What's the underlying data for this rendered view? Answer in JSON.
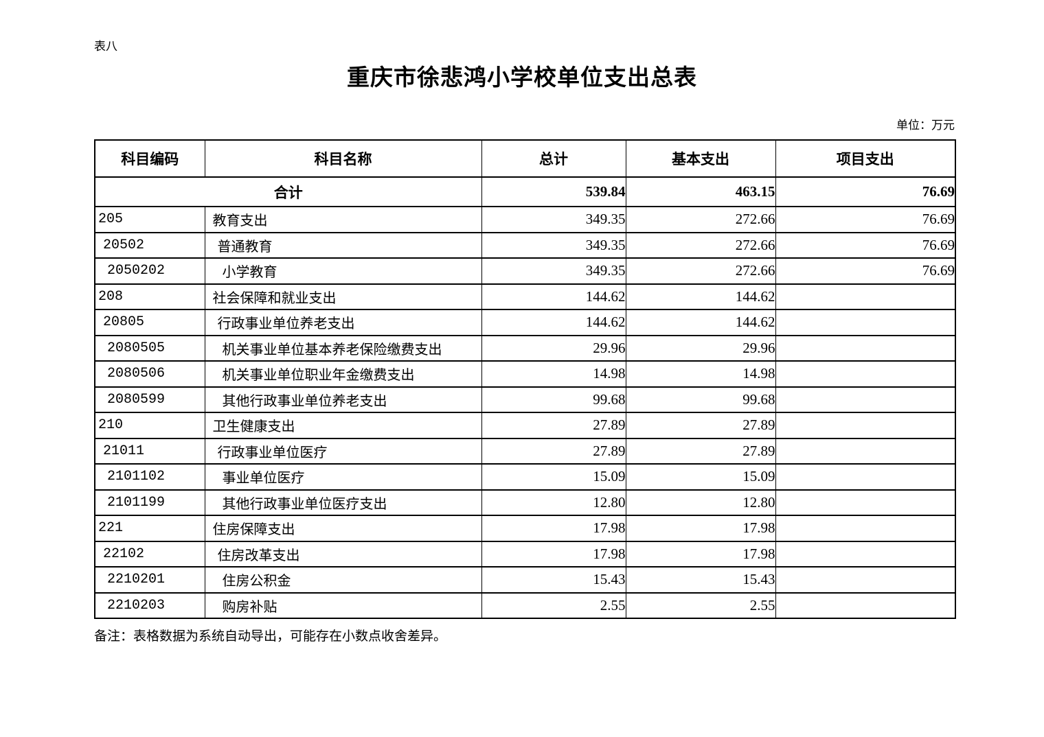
{
  "page": {
    "table_label": "表八",
    "title": "重庆市徐悲鸿小学校单位支出总表",
    "unit_label": "单位：万元",
    "note": "备注：表格数据为系统自动导出，可能存在小数点收舍差异。"
  },
  "table": {
    "columns": [
      "科目编码",
      "科目名称",
      "总计",
      "基本支出",
      "项目支出"
    ],
    "total_row": {
      "label": "合计",
      "total": "539.84",
      "basic": "463.15",
      "project": "76.69"
    },
    "rows": [
      {
        "code": "205",
        "name": "教育支出",
        "level": 1,
        "total": "349.35",
        "basic": "272.66",
        "project": "76.69"
      },
      {
        "code": "20502",
        "name": "普通教育",
        "level": 2,
        "total": "349.35",
        "basic": "272.66",
        "project": "76.69"
      },
      {
        "code": "2050202",
        "name": "小学教育",
        "level": 3,
        "total": "349.35",
        "basic": "272.66",
        "project": "76.69"
      },
      {
        "code": "208",
        "name": "社会保障和就业支出",
        "level": 1,
        "total": "144.62",
        "basic": "144.62",
        "project": ""
      },
      {
        "code": "20805",
        "name": "行政事业单位养老支出",
        "level": 2,
        "total": "144.62",
        "basic": "144.62",
        "project": ""
      },
      {
        "code": "2080505",
        "name": "机关事业单位基本养老保险缴费支出",
        "level": 3,
        "total": "29.96",
        "basic": "29.96",
        "project": ""
      },
      {
        "code": "2080506",
        "name": "机关事业单位职业年金缴费支出",
        "level": 3,
        "total": "14.98",
        "basic": "14.98",
        "project": ""
      },
      {
        "code": "2080599",
        "name": "其他行政事业单位养老支出",
        "level": 3,
        "total": "99.68",
        "basic": "99.68",
        "project": ""
      },
      {
        "code": "210",
        "name": "卫生健康支出",
        "level": 1,
        "total": "27.89",
        "basic": "27.89",
        "project": ""
      },
      {
        "code": "21011",
        "name": "行政事业单位医疗",
        "level": 2,
        "total": "27.89",
        "basic": "27.89",
        "project": ""
      },
      {
        "code": "2101102",
        "name": "事业单位医疗",
        "level": 3,
        "total": "15.09",
        "basic": "15.09",
        "project": ""
      },
      {
        "code": "2101199",
        "name": "其他行政事业单位医疗支出",
        "level": 3,
        "total": "12.80",
        "basic": "12.80",
        "project": ""
      },
      {
        "code": "221",
        "name": "住房保障支出",
        "level": 1,
        "total": "17.98",
        "basic": "17.98",
        "project": ""
      },
      {
        "code": "22102",
        "name": "住房改革支出",
        "level": 2,
        "total": "17.98",
        "basic": "17.98",
        "project": ""
      },
      {
        "code": "2210201",
        "name": "住房公积金",
        "level": 3,
        "total": "15.43",
        "basic": "15.43",
        "project": ""
      },
      {
        "code": "2210203",
        "name": "购房补贴",
        "level": 3,
        "total": "2.55",
        "basic": "2.55",
        "project": ""
      }
    ]
  }
}
